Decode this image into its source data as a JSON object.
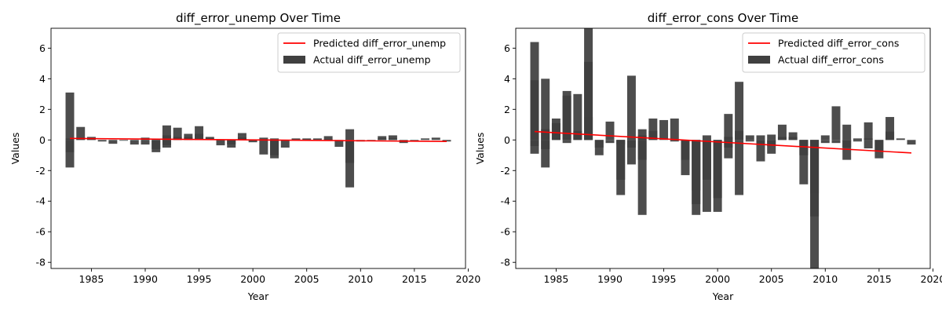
{
  "colors": {
    "predicted": "#ff0000",
    "actual": "#404040",
    "axis": "#000000"
  },
  "chart_data": [
    {
      "type": "bar",
      "title": "diff_error_unemp Over Time",
      "xlabel": "Year",
      "ylabel": "Values",
      "xlim": [
        1981.25,
        2019.75
      ],
      "ylim": [
        -8.4,
        7.3
      ],
      "xticks": [
        1985,
        1990,
        1995,
        2000,
        2005,
        2010,
        2015,
        2020
      ],
      "yticks": [
        -8,
        -6,
        -4,
        -2,
        0,
        2,
        4,
        6
      ],
      "legend_position": "top-right",
      "grid": false,
      "series": [
        {
          "name": "Predicted diff_error_unemp",
          "kind": "line",
          "x": [
            1983,
            2018
          ],
          "y": [
            0.1,
            -0.1
          ]
        },
        {
          "name": "Actual diff_error_unemp",
          "kind": "bar",
          "bars": [
            {
              "x": 1983,
              "y": [
                3.1,
                0.1,
                -0.8,
                -1.8
              ]
            },
            {
              "x": 1984,
              "y": [
                0.85,
                0.15
              ]
            },
            {
              "x": 1985,
              "y": [
                0.2,
                0.1
              ]
            },
            {
              "x": 1986,
              "y": [
                -0.1
              ]
            },
            {
              "x": 1987,
              "y": [
                -0.25
              ]
            },
            {
              "x": 1988,
              "y": [
                -0.05
              ]
            },
            {
              "x": 1989,
              "y": [
                -0.3
              ]
            },
            {
              "x": 1990,
              "y": [
                0.15,
                -0.3
              ]
            },
            {
              "x": 1991,
              "y": [
                -0.6,
                -0.8
              ]
            },
            {
              "x": 1992,
              "y": [
                0.95,
                0.3,
                -0.35,
                -0.5
              ]
            },
            {
              "x": 1993,
              "y": [
                0.8,
                0.2
              ]
            },
            {
              "x": 1994,
              "y": [
                0.4,
                0.2
              ]
            },
            {
              "x": 1995,
              "y": [
                0.9,
                0.4
              ]
            },
            {
              "x": 1996,
              "y": [
                0.2,
                0.1
              ]
            },
            {
              "x": 1997,
              "y": [
                -0.35
              ]
            },
            {
              "x": 1998,
              "y": [
                -0.3,
                -0.5
              ]
            },
            {
              "x": 1999,
              "y": [
                0.45,
                0.15
              ]
            },
            {
              "x": 2000,
              "y": [
                -0.15
              ]
            },
            {
              "x": 2001,
              "y": [
                0.15,
                -0.95
              ]
            },
            {
              "x": 2002,
              "y": [
                0.1,
                -1.0,
                -1.2
              ]
            },
            {
              "x": 2003,
              "y": [
                -0.5
              ]
            },
            {
              "x": 2004,
              "y": [
                0.1
              ]
            },
            {
              "x": 2005,
              "y": [
                0.1
              ]
            },
            {
              "x": 2006,
              "y": [
                0.1
              ]
            },
            {
              "x": 2007,
              "y": [
                0.25,
                0.05
              ]
            },
            {
              "x": 2008,
              "y": [
                -0.45
              ]
            },
            {
              "x": 2009,
              "y": [
                0.7,
                -1.5,
                -3.1
              ]
            },
            {
              "x": 2010,
              "y": [
                -0.1
              ]
            },
            {
              "x": 2011,
              "y": [
                -0.05
              ]
            },
            {
              "x": 2012,
              "y": [
                0.25,
                0.1
              ]
            },
            {
              "x": 2013,
              "y": [
                0.3,
                0.1
              ]
            },
            {
              "x": 2014,
              "y": [
                -0.2
              ]
            },
            {
              "x": 2015,
              "y": [
                -0.1
              ]
            },
            {
              "x": 2016,
              "y": [
                0.1
              ]
            },
            {
              "x": 2017,
              "y": [
                0.15
              ]
            },
            {
              "x": 2018,
              "y": [
                -0.1
              ]
            }
          ]
        }
      ]
    },
    {
      "type": "bar",
      "title": "diff_error_cons Over Time",
      "xlabel": "Year",
      "ylabel": "Values",
      "xlim": [
        1981.25,
        2019.75
      ],
      "ylim": [
        -8.4,
        7.3
      ],
      "xticks": [
        1985,
        1990,
        1995,
        2000,
        2005,
        2010,
        2015,
        2020
      ],
      "yticks": [
        -8,
        -6,
        -4,
        -2,
        0,
        2,
        4,
        6
      ],
      "legend_position": "top-right",
      "grid": false,
      "series": [
        {
          "name": "Predicted diff_error_cons",
          "kind": "line",
          "x": [
            1983,
            2018
          ],
          "y": [
            0.55,
            -0.85
          ]
        },
        {
          "name": "Actual diff_error_cons",
          "kind": "bar",
          "bars": [
            {
              "x": 1983,
              "y": [
                6.4,
                3.9,
                -0.4,
                -0.9
              ]
            },
            {
              "x": 1984,
              "y": [
                4.0,
                0.7,
                -0.6,
                -1.8
              ]
            },
            {
              "x": 1985,
              "y": [
                1.4,
                1.1
              ]
            },
            {
              "x": 1986,
              "y": [
                3.2,
                2.9,
                -0.2
              ]
            },
            {
              "x": 1987,
              "y": [
                3.0,
                0.6
              ]
            },
            {
              "x": 1988,
              "y": [
                7.3,
                5.1,
                1.5
              ]
            },
            {
              "x": 1989,
              "y": [
                -0.5,
                -1.0
              ]
            },
            {
              "x": 1990,
              "y": [
                1.2,
                -0.2
              ]
            },
            {
              "x": 1991,
              "y": [
                -0.3,
                -2.6,
                -3.6
              ]
            },
            {
              "x": 1992,
              "y": [
                4.2,
                -0.5,
                -1.6
              ]
            },
            {
              "x": 1993,
              "y": [
                0.7,
                0.3,
                -1.3,
                -4.9
              ]
            },
            {
              "x": 1994,
              "y": [
                1.4,
                0.6
              ]
            },
            {
              "x": 1995,
              "y": [
                1.3
              ]
            },
            {
              "x": 1996,
              "y": [
                1.4,
                -0.1
              ]
            },
            {
              "x": 1997,
              "y": [
                -1.3,
                -2.3
              ]
            },
            {
              "x": 1998,
              "y": [
                -3.3,
                -4.2,
                -4.9
              ]
            },
            {
              "x": 1999,
              "y": [
                0.3,
                -2.6,
                -4.7
              ]
            },
            {
              "x": 2000,
              "y": [
                -3.8,
                -4.7
              ]
            },
            {
              "x": 2001,
              "y": [
                1.7,
                0.2,
                -0.5,
                -1.2
              ]
            },
            {
              "x": 2002,
              "y": [
                3.8,
                0.6,
                -3.6
              ]
            },
            {
              "x": 2003,
              "y": [
                0.3,
                -0.1
              ]
            },
            {
              "x": 2004,
              "y": [
                0.3,
                -0.3,
                -1.4
              ]
            },
            {
              "x": 2005,
              "y": [
                0.35,
                -0.4,
                -0.9
              ]
            },
            {
              "x": 2006,
              "y": [
                1.0,
                0.2
              ]
            },
            {
              "x": 2007,
              "y": [
                0.5,
                0.2
              ]
            },
            {
              "x": 2008,
              "y": [
                -0.5,
                -1.0,
                -2.9
              ]
            },
            {
              "x": 2009,
              "y": [
                -3.5,
                -5.0,
                -8.4
              ]
            },
            {
              "x": 2010,
              "y": [
                0.3,
                -0.2
              ]
            },
            {
              "x": 2011,
              "y": [
                2.2,
                -0.2
              ]
            },
            {
              "x": 2012,
              "y": [
                1.0,
                -0.5,
                -1.3
              ]
            },
            {
              "x": 2013,
              "y": [
                0.1,
                -0.1
              ]
            },
            {
              "x": 2014,
              "y": [
                1.15,
                0.1,
                -0.55
              ]
            },
            {
              "x": 2015,
              "y": [
                -0.7,
                -1.2
              ]
            },
            {
              "x": 2016,
              "y": [
                1.5,
                0.55
              ]
            },
            {
              "x": 2017,
              "y": [
                0.1
              ]
            },
            {
              "x": 2018,
              "y": [
                -0.3
              ]
            }
          ]
        }
      ]
    }
  ]
}
